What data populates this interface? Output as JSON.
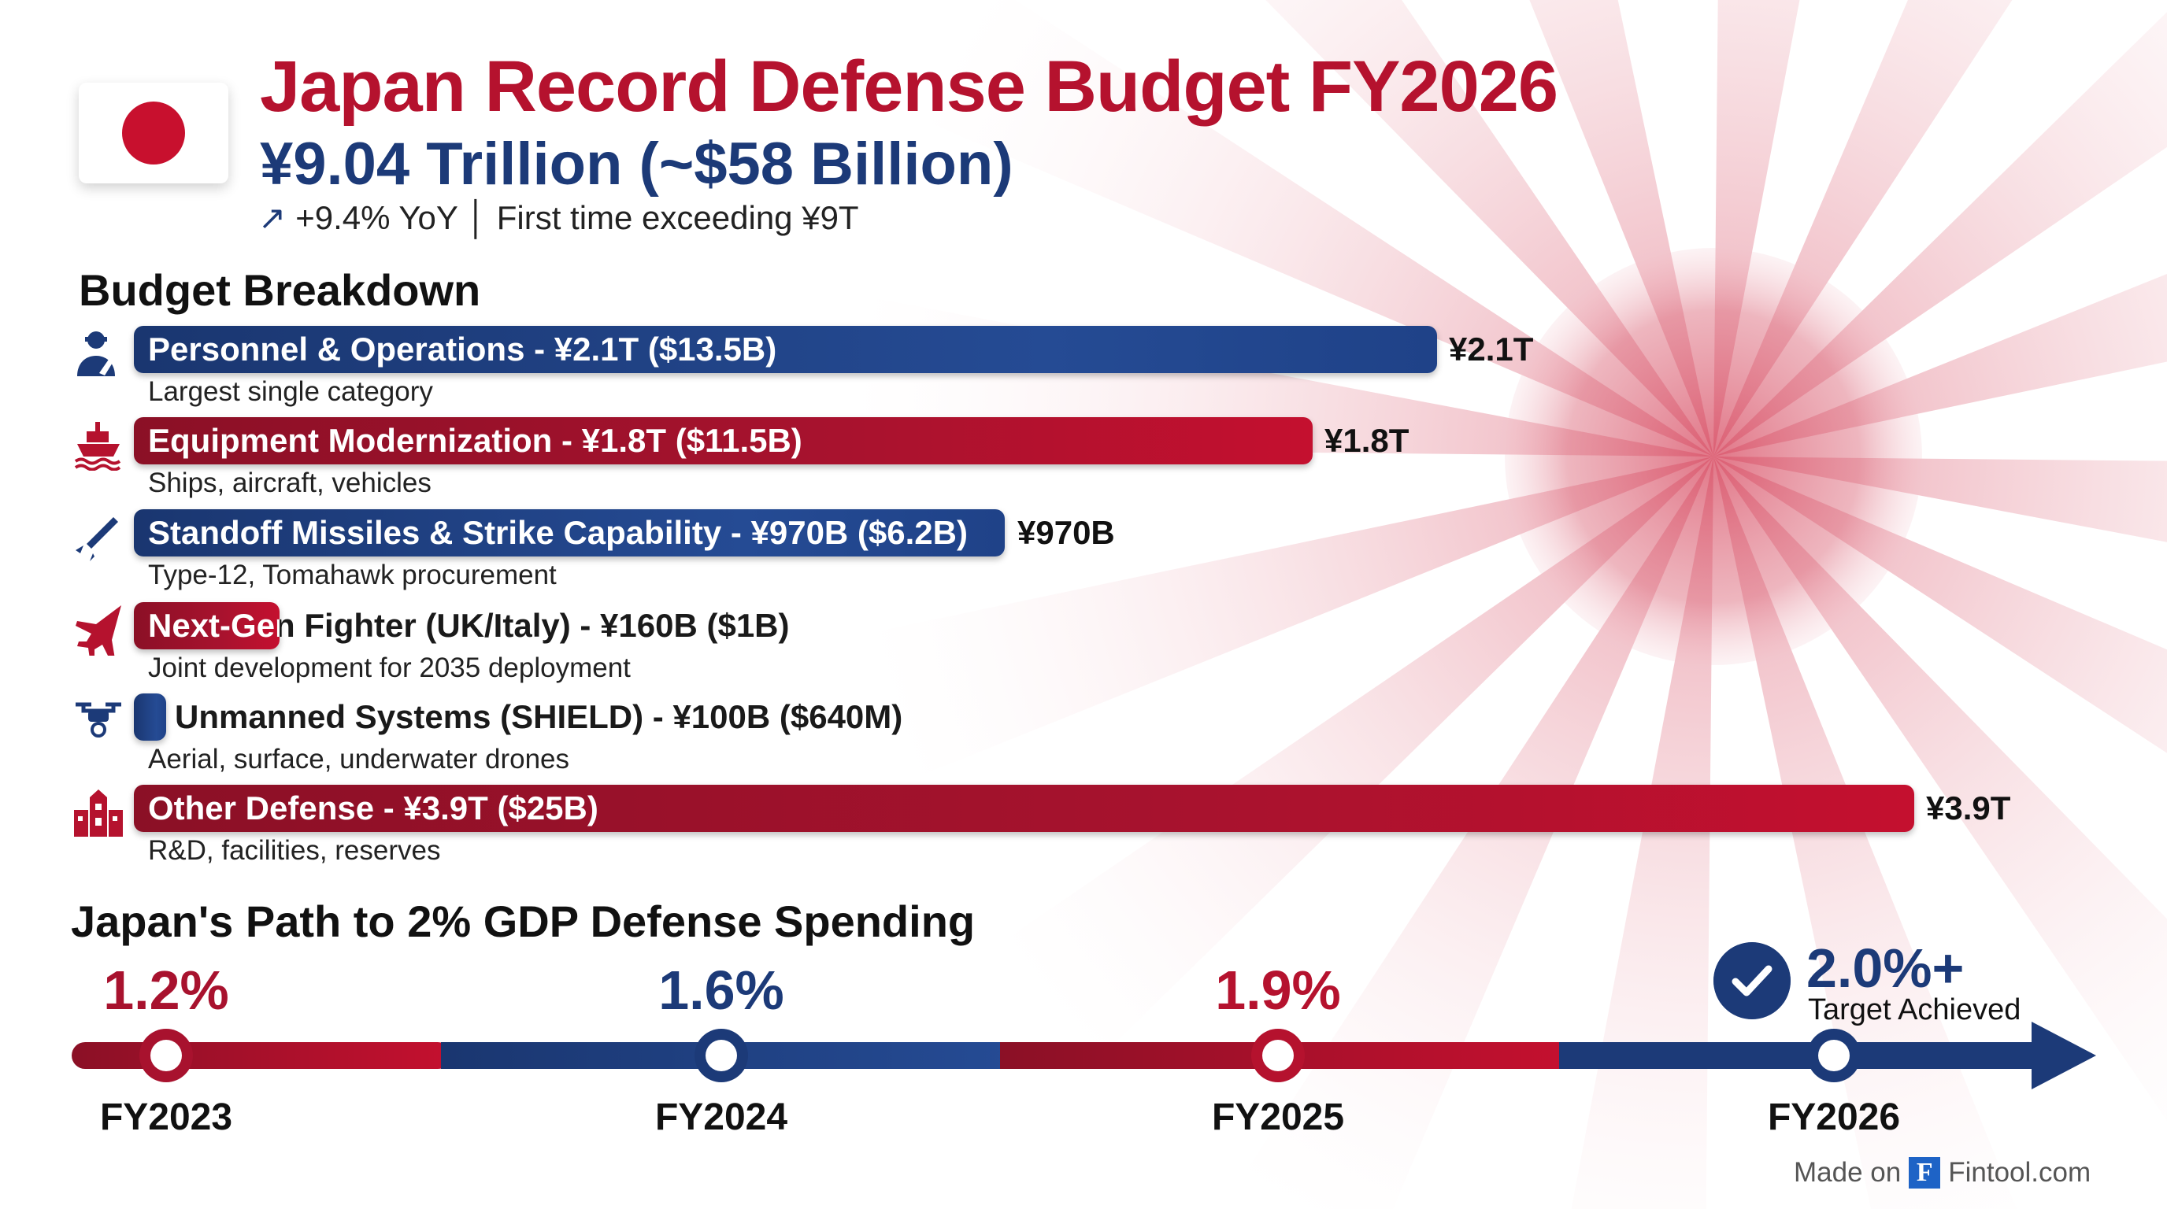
{
  "header": {
    "title": "Japan Record Defense Budget FY2026",
    "subtitle": "¥9.04 Trillion (~$58 Billion)",
    "tagline_icon": "trend-up-arrow-icon",
    "tagline": "+9.4% YoY │ First time exceeding ¥9T",
    "flag": "japan-flag"
  },
  "breakdown": {
    "title": "Budget Breakdown",
    "items": [
      {
        "icon": "soldier-icon",
        "label": "Personnel & Operations - ¥2.1T ($13.5B)",
        "value": "¥2.1T",
        "note": "Largest single category",
        "color": "#1c3a78"
      },
      {
        "icon": "ship-icon",
        "label": "Equipment Modernization - ¥1.8T ($11.5B)",
        "value": "¥1.8T",
        "note": "Ships, aircraft, vehicles",
        "color": "#b5122e"
      },
      {
        "icon": "missile-icon",
        "label": "Standoff Missiles & Strike Capability - ¥970B ($6.2B)",
        "value": "¥970B",
        "note": "Type-12, Tomahawk procurement",
        "color": "#1c3a78"
      },
      {
        "icon": "fighter-jet-icon",
        "label": "Next-Gen Fighter (UK/Italy) - ¥160B ($1B)",
        "note": "Joint development for 2035 deployment",
        "color": "#b5122e"
      },
      {
        "icon": "drone-icon",
        "label": "Unmanned Systems (SHIELD) - ¥100B ($640M)",
        "note": "Aerial, surface, underwater drones",
        "color": "#1c3a78"
      },
      {
        "icon": "buildings-icon",
        "label": "Other Defense - ¥3.9T ($25B)",
        "value": "¥3.9T",
        "note": "R&D, facilities, reserves",
        "color": "#b5122e"
      }
    ]
  },
  "path": {
    "title": "Japan's Path to 2% GDP Defense Spending",
    "milestones": [
      {
        "year": "FY2023",
        "pct": "1.2%",
        "color": "#b5122e"
      },
      {
        "year": "FY2024",
        "pct": "1.6%",
        "color": "#1c3a78"
      },
      {
        "year": "FY2025",
        "pct": "1.9%",
        "color": "#b5122e"
      },
      {
        "year": "FY2026",
        "pct": "2.0%+",
        "label": "Target Achieved",
        "color": "#1c3a78",
        "icon": "check-circle-icon"
      }
    ]
  },
  "footer": {
    "prefix": "Made on",
    "logo": "F",
    "brand": "Fintool.com"
  },
  "colors": {
    "red": "#b5122e",
    "navy": "#1c3a78",
    "sun": "#d9546a"
  }
}
